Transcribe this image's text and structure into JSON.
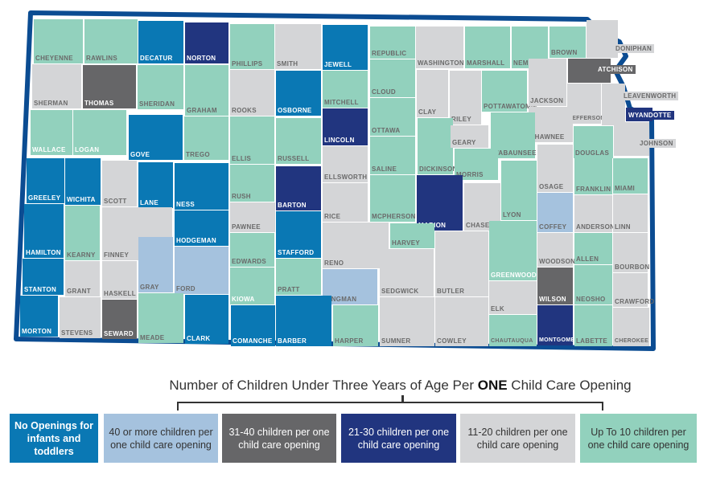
{
  "colors": {
    "none": "#0a78b4",
    "c40plus": "#a5c2de",
    "c31_40": "#666668",
    "c21_30": "#21357f",
    "c11_20": "#d4d5d7",
    "upto10": "#92d1bd",
    "state_border": "#0b4c92"
  },
  "legend": {
    "title_pre": "Number of Children Under Three Years of Age Per ",
    "title_bold": "ONE",
    "title_post": " Child Care Opening",
    "items": [
      {
        "key": "none",
        "label": "No Openings for infants and toddlers"
      },
      {
        "key": "c40plus",
        "label": "40 or more children per one child care opening"
      },
      {
        "key": "c31_40",
        "label": "31-40 children per one child care opening"
      },
      {
        "key": "c21_30",
        "label": "21-30 children per one child care opening"
      },
      {
        "key": "c11_20",
        "label": "11-20 children per one child care opening"
      },
      {
        "key": "upto10",
        "label": "Up To 10 children per one child care opening"
      }
    ]
  },
  "counties": [
    {
      "name": "CHEYENNE",
      "cat": "upto10"
    },
    {
      "name": "RAWLINS",
      "cat": "upto10"
    },
    {
      "name": "DECATUR",
      "cat": "none"
    },
    {
      "name": "NORTON",
      "cat": "c21_30"
    },
    {
      "name": "PHILLIPS",
      "cat": "upto10"
    },
    {
      "name": "SMITH",
      "cat": "c11_20"
    },
    {
      "name": "JEWELL",
      "cat": "none"
    },
    {
      "name": "REPUBLIC",
      "cat": "upto10"
    },
    {
      "name": "WASHINGTON",
      "cat": "c11_20"
    },
    {
      "name": "MARSHALL",
      "cat": "upto10"
    },
    {
      "name": "NEMAHA",
      "cat": "upto10"
    },
    {
      "name": "BROWN",
      "cat": "upto10"
    },
    {
      "name": "DONIPHAN",
      "cat": "c11_20"
    },
    {
      "name": "SHERMAN",
      "cat": "c11_20"
    },
    {
      "name": "THOMAS",
      "cat": "c31_40"
    },
    {
      "name": "SHERIDAN",
      "cat": "upto10"
    },
    {
      "name": "GRAHAM",
      "cat": "upto10"
    },
    {
      "name": "ROOKS",
      "cat": "c11_20"
    },
    {
      "name": "OSBORNE",
      "cat": "none"
    },
    {
      "name": "MITCHELL",
      "cat": "upto10"
    },
    {
      "name": "CLOUD",
      "cat": "upto10"
    },
    {
      "name": "CLAY",
      "cat": "c11_20"
    },
    {
      "name": "RILEY",
      "cat": "c11_20"
    },
    {
      "name": "POTTAWATOMIE",
      "cat": "upto10"
    },
    {
      "name": "JACKSON",
      "cat": "c11_20"
    },
    {
      "name": "ATCHISON",
      "cat": "c31_40"
    },
    {
      "name": "JEFFERSON",
      "cat": "c11_20"
    },
    {
      "name": "LEAVENWORTH",
      "cat": "c11_20"
    },
    {
      "name": "WYANDOTTE",
      "cat": "c21_30"
    },
    {
      "name": "SHAWNEE",
      "cat": "c11_20"
    },
    {
      "name": "JOHNSON",
      "cat": "c11_20"
    },
    {
      "name": "WALLACE",
      "cat": "upto10"
    },
    {
      "name": "LOGAN",
      "cat": "upto10"
    },
    {
      "name": "GOVE",
      "cat": "none"
    },
    {
      "name": "TREGO",
      "cat": "upto10"
    },
    {
      "name": "ELLIS",
      "cat": "upto10"
    },
    {
      "name": "RUSSELL",
      "cat": "upto10"
    },
    {
      "name": "LINCOLN",
      "cat": "c21_30"
    },
    {
      "name": "ELLSWORTH",
      "cat": "c11_20"
    },
    {
      "name": "OTTAWA",
      "cat": "upto10"
    },
    {
      "name": "SALINE",
      "cat": "upto10"
    },
    {
      "name": "DICKINSON",
      "cat": "upto10"
    },
    {
      "name": "GEARY",
      "cat": "c11_20"
    },
    {
      "name": "WABAUNSEE",
      "cat": "upto10"
    },
    {
      "name": "MORRIS",
      "cat": "upto10"
    },
    {
      "name": "DOUGLAS",
      "cat": "upto10"
    },
    {
      "name": "GREELEY",
      "cat": "none"
    },
    {
      "name": "WICHITA",
      "cat": "none"
    },
    {
      "name": "SCOTT",
      "cat": "c11_20"
    },
    {
      "name": "LANE",
      "cat": "none"
    },
    {
      "name": "NESS",
      "cat": "none"
    },
    {
      "name": "RUSH",
      "cat": "upto10"
    },
    {
      "name": "BARTON",
      "cat": "c21_30"
    },
    {
      "name": "RICE",
      "cat": "c11_20"
    },
    {
      "name": "MCPHERSON",
      "cat": "upto10"
    },
    {
      "name": "MARION",
      "cat": "c21_30"
    },
    {
      "name": "CHASE",
      "cat": "c11_20"
    },
    {
      "name": "LYON",
      "cat": "upto10"
    },
    {
      "name": "OSAGE",
      "cat": "c11_20"
    },
    {
      "name": "FRANKLIN",
      "cat": "upto10"
    },
    {
      "name": "MIAMI",
      "cat": "upto10"
    },
    {
      "name": "HAMILTON",
      "cat": "none"
    },
    {
      "name": "KEARNY",
      "cat": "upto10"
    },
    {
      "name": "FINNEY",
      "cat": "c11_20"
    },
    {
      "name": "HODGEMAN",
      "cat": "none"
    },
    {
      "name": "PAWNEE",
      "cat": "c11_20"
    },
    {
      "name": "STAFFORD",
      "cat": "none"
    },
    {
      "name": "RENO",
      "cat": "c11_20"
    },
    {
      "name": "HARVEY",
      "cat": "upto10"
    },
    {
      "name": "COFFEY",
      "cat": "c40plus"
    },
    {
      "name": "ANDERSON",
      "cat": "c11_20"
    },
    {
      "name": "LINN",
      "cat": "c11_20"
    },
    {
      "name": "GRAY",
      "cat": "c40plus"
    },
    {
      "name": "FORD",
      "cat": "c40plus"
    },
    {
      "name": "EDWARDS",
      "cat": "upto10"
    },
    {
      "name": "KIOWA",
      "cat": "upto10"
    },
    {
      "name": "PRATT",
      "cat": "upto10"
    },
    {
      "name": "KINGMAN",
      "cat": "c40plus"
    },
    {
      "name": "SEDGWICK",
      "cat": "c11_20"
    },
    {
      "name": "BUTLER",
      "cat": "c11_20"
    },
    {
      "name": "GREENWOOD",
      "cat": "upto10"
    },
    {
      "name": "WOODSON",
      "cat": "c11_20"
    },
    {
      "name": "ALLEN",
      "cat": "upto10"
    },
    {
      "name": "BOURBON",
      "cat": "c11_20"
    },
    {
      "name": "STANTON",
      "cat": "none"
    },
    {
      "name": "GRANT",
      "cat": "c11_20"
    },
    {
      "name": "HASKELL",
      "cat": "c11_20"
    },
    {
      "name": "WILSON",
      "cat": "c31_40"
    },
    {
      "name": "NEOSHO",
      "cat": "upto10"
    },
    {
      "name": "CRAWFORD",
      "cat": "c11_20"
    },
    {
      "name": "ELK",
      "cat": "c11_20"
    },
    {
      "name": "MORTON",
      "cat": "none"
    },
    {
      "name": "STEVENS",
      "cat": "c11_20"
    },
    {
      "name": "SEWARD",
      "cat": "c31_40"
    },
    {
      "name": "MEADE",
      "cat": "upto10"
    },
    {
      "name": "CLARK",
      "cat": "none"
    },
    {
      "name": "COMANCHE",
      "cat": "none"
    },
    {
      "name": "BARBER",
      "cat": "none"
    },
    {
      "name": "HARPER",
      "cat": "upto10"
    },
    {
      "name": "SUMNER",
      "cat": "c11_20"
    },
    {
      "name": "COWLEY",
      "cat": "c11_20"
    },
    {
      "name": "CHAUTAUQUA",
      "cat": "upto10"
    },
    {
      "name": "MONTGOMERY",
      "cat": "c21_30"
    },
    {
      "name": "LABETTE",
      "cat": "upto10"
    },
    {
      "name": "CHEROKEE",
      "cat": "c11_20"
    }
  ]
}
